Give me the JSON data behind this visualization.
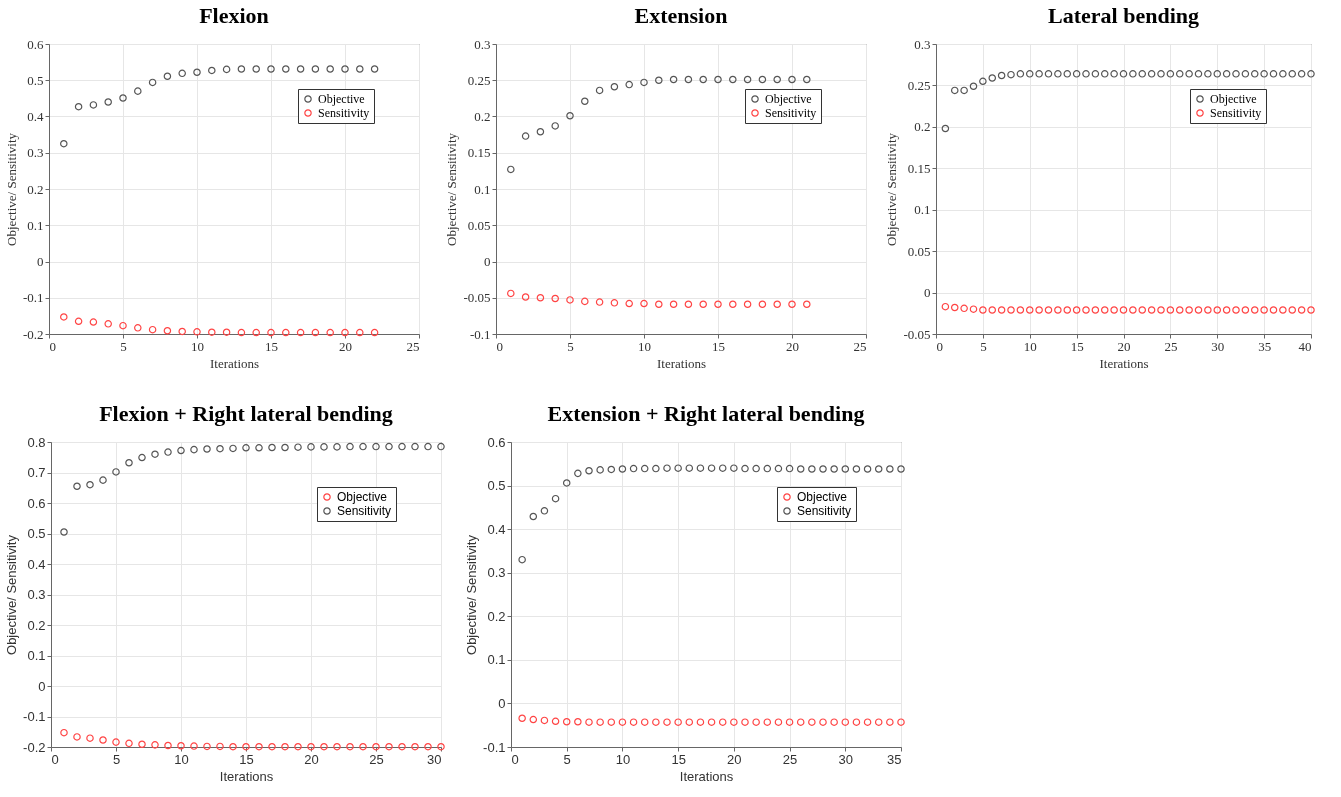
{
  "chart_data": [
    {
      "type": "scatter",
      "title": "Flexion",
      "xlabel": "Iterations",
      "ylabel": "Objective/ Sensitivity",
      "x": [
        1,
        2,
        3,
        4,
        5,
        6,
        7,
        8,
        9,
        10,
        11,
        12,
        13,
        14,
        15,
        16,
        17,
        18,
        19,
        20,
        21,
        22
      ],
      "xlim": [
        0,
        25
      ],
      "xticks": [
        0,
        5,
        10,
        15,
        20,
        25
      ],
      "ylim": [
        -0.2,
        0.6
      ],
      "yticks": [
        -0.2,
        -0.1,
        0,
        0.1,
        0.2,
        0.3,
        0.4,
        0.5,
        0.6
      ],
      "grid": true,
      "legend": "top right",
      "marker": "circle",
      "series": [
        {
          "name": "Objective",
          "color": "#555555",
          "values": [
            0.325,
            0.427,
            0.432,
            0.44,
            0.451,
            0.47,
            0.494,
            0.511,
            0.519,
            0.522,
            0.527,
            0.53,
            0.531,
            0.531,
            0.531,
            0.531,
            0.531,
            0.531,
            0.531,
            0.531,
            0.531,
            0.531
          ]
        },
        {
          "name": "Sensitivity",
          "color": "#ff4444",
          "values": [
            -0.153,
            -0.165,
            -0.167,
            -0.172,
            -0.177,
            -0.183,
            -0.188,
            -0.191,
            -0.193,
            -0.194,
            -0.195,
            -0.195,
            -0.196,
            -0.196,
            -0.196,
            -0.196,
            -0.196,
            -0.196,
            -0.196,
            -0.196,
            -0.196,
            -0.196
          ]
        }
      ]
    },
    {
      "type": "scatter",
      "title": "Extension",
      "xlabel": "Iterations",
      "ylabel": "Objective/ Sensitivity",
      "x": [
        1,
        2,
        3,
        4,
        5,
        6,
        7,
        8,
        9,
        10,
        11,
        12,
        13,
        14,
        15,
        16,
        17,
        18,
        19,
        20,
        21
      ],
      "xlim": [
        0,
        25
      ],
      "xticks": [
        0,
        5,
        10,
        15,
        20,
        25
      ],
      "ylim": [
        -0.1,
        0.3
      ],
      "yticks": [
        -0.1,
        -0.05,
        0,
        0.05,
        0.1,
        0.15,
        0.2,
        0.25,
        0.3
      ],
      "grid": true,
      "legend": "top right",
      "marker": "circle",
      "series": [
        {
          "name": "Objective",
          "color": "#555555",
          "values": [
            0.127,
            0.173,
            0.179,
            0.187,
            0.201,
            0.221,
            0.236,
            0.241,
            0.244,
            0.247,
            0.25,
            0.251,
            0.251,
            0.251,
            0.251,
            0.251,
            0.251,
            0.251,
            0.251,
            0.251,
            0.251
          ]
        },
        {
          "name": "Sensitivity",
          "color": "#ff4444",
          "values": [
            -0.044,
            -0.049,
            -0.05,
            -0.051,
            -0.053,
            -0.055,
            -0.056,
            -0.057,
            -0.058,
            -0.058,
            -0.059,
            -0.059,
            -0.059,
            -0.059,
            -0.059,
            -0.059,
            -0.059,
            -0.059,
            -0.059,
            -0.059,
            -0.059
          ]
        }
      ]
    },
    {
      "type": "scatter",
      "title": "Lateral bending",
      "xlabel": "Iterations",
      "ylabel": "Objective/ Sensitivity",
      "x": [
        1,
        2,
        3,
        4,
        5,
        6,
        7,
        8,
        9,
        10,
        11,
        12,
        13,
        14,
        15,
        16,
        17,
        18,
        19,
        20,
        21,
        22,
        23,
        24,
        25,
        26,
        27,
        28,
        29,
        30,
        31,
        32,
        33,
        34,
        35,
        36,
        37,
        38,
        39,
        40
      ],
      "xlim": [
        0,
        40
      ],
      "xticks": [
        0,
        5,
        10,
        15,
        20,
        25,
        30,
        35,
        40
      ],
      "ylim": [
        -0.05,
        0.3
      ],
      "yticks": [
        -0.05,
        0,
        0.05,
        0.1,
        0.15,
        0.2,
        0.25,
        0.3
      ],
      "grid": true,
      "legend": "top right",
      "marker": "circle",
      "series": [
        {
          "name": "Objective",
          "color": "#555555",
          "values": [
            0.198,
            0.244,
            0.244,
            0.249,
            0.255,
            0.259,
            0.262,
            0.263,
            0.264,
            0.264,
            0.264,
            0.264,
            0.264,
            0.264,
            0.264,
            0.264,
            0.264,
            0.264,
            0.264,
            0.264,
            0.264,
            0.264,
            0.264,
            0.264,
            0.264,
            0.264,
            0.264,
            0.264,
            0.264,
            0.264,
            0.264,
            0.264,
            0.264,
            0.264,
            0.264,
            0.264,
            0.264,
            0.264,
            0.264,
            0.264
          ]
        },
        {
          "name": "Sensitivity",
          "color": "#ff4444",
          "values": [
            -0.017,
            -0.018,
            -0.019,
            -0.02,
            -0.021,
            -0.021,
            -0.021,
            -0.021,
            -0.021,
            -0.021,
            -0.021,
            -0.021,
            -0.021,
            -0.021,
            -0.021,
            -0.021,
            -0.021,
            -0.021,
            -0.021,
            -0.021,
            -0.021,
            -0.021,
            -0.021,
            -0.021,
            -0.021,
            -0.021,
            -0.021,
            -0.021,
            -0.021,
            -0.021,
            -0.021,
            -0.021,
            -0.021,
            -0.021,
            -0.021,
            -0.021,
            -0.021,
            -0.021,
            -0.021,
            -0.021
          ]
        }
      ]
    },
    {
      "type": "scatter",
      "title": "Flexion + Right lateral bending",
      "xlabel": "Iterations",
      "ylabel": "Objective/ Sensitivity",
      "x": [
        1,
        2,
        3,
        4,
        5,
        6,
        7,
        8,
        9,
        10,
        11,
        12,
        13,
        14,
        15,
        16,
        17,
        18,
        19,
        20,
        21,
        22,
        23,
        24,
        25,
        26,
        27,
        28,
        29,
        30
      ],
      "xlim": [
        0,
        30
      ],
      "xticks": [
        0,
        5,
        10,
        15,
        20,
        25,
        30
      ],
      "ylim": [
        -0.2,
        0.8
      ],
      "yticks": [
        -0.2,
        -0.1,
        0,
        0.1,
        0.2,
        0.3,
        0.4,
        0.5,
        0.6,
        0.7,
        0.8
      ],
      "grid": true,
      "legend": "top right",
      "marker": "circle",
      "series": [
        {
          "name": "Objective",
          "color": "#ff4444",
          "values": [
            -0.153,
            -0.167,
            -0.171,
            -0.177,
            -0.184,
            -0.188,
            -0.191,
            -0.193,
            -0.195,
            -0.196,
            -0.197,
            -0.198,
            -0.198,
            -0.199,
            -0.199,
            -0.199,
            -0.199,
            -0.199,
            -0.199,
            -0.199,
            -0.199,
            -0.199,
            -0.199,
            -0.199,
            -0.199,
            -0.199,
            -0.199,
            -0.199,
            -0.199,
            -0.199
          ]
        },
        {
          "name": "Sensitivity",
          "color": "#555555",
          "values": [
            0.505,
            0.655,
            0.66,
            0.675,
            0.702,
            0.732,
            0.749,
            0.76,
            0.767,
            0.772,
            0.775,
            0.777,
            0.778,
            0.779,
            0.781,
            0.781,
            0.782,
            0.782,
            0.783,
            0.784,
            0.784,
            0.784,
            0.785,
            0.785,
            0.785,
            0.785,
            0.785,
            0.785,
            0.785,
            0.785
          ]
        }
      ]
    },
    {
      "type": "scatter",
      "title": "Extension + Right lateral bending",
      "xlabel": "Iterations",
      "ylabel": "Objective/ Sensitivity",
      "x": [
        1,
        2,
        3,
        4,
        5,
        6,
        7,
        8,
        9,
        10,
        11,
        12,
        13,
        14,
        15,
        16,
        17,
        18,
        19,
        20,
        21,
        22,
        23,
        24,
        25,
        26,
        27,
        28,
        29,
        30,
        31,
        32,
        33,
        34,
        35
      ],
      "xlim": [
        0,
        35
      ],
      "xticks": [
        0,
        5,
        10,
        15,
        20,
        25,
        30,
        35
      ],
      "ylim": [
        -0.1,
        0.6
      ],
      "yticks": [
        -0.1,
        0,
        0.1,
        0.2,
        0.3,
        0.4,
        0.5,
        0.6
      ],
      "grid": true,
      "legend": "top right",
      "marker": "circle",
      "series": [
        {
          "name": "Objective",
          "color": "#ff4444",
          "values": [
            -0.034,
            -0.037,
            -0.039,
            -0.041,
            -0.042,
            -0.042,
            -0.043,
            -0.043,
            -0.043,
            -0.043,
            -0.043,
            -0.043,
            -0.043,
            -0.043,
            -0.043,
            -0.043,
            -0.043,
            -0.043,
            -0.043,
            -0.043,
            -0.043,
            -0.043,
            -0.043,
            -0.043,
            -0.043,
            -0.043,
            -0.043,
            -0.043,
            -0.043,
            -0.043,
            -0.043,
            -0.043,
            -0.043,
            -0.043,
            -0.043
          ]
        },
        {
          "name": "Sensitivity",
          "color": "#555555",
          "values": [
            0.33,
            0.429,
            0.442,
            0.47,
            0.506,
            0.528,
            0.534,
            0.536,
            0.537,
            0.538,
            0.539,
            0.539,
            0.539,
            0.54,
            0.54,
            0.54,
            0.54,
            0.54,
            0.54,
            0.54,
            0.539,
            0.539,
            0.539,
            0.539,
            0.539,
            0.538,
            0.538,
            0.538,
            0.538,
            0.538,
            0.538,
            0.538,
            0.538,
            0.538,
            0.538
          ]
        }
      ]
    }
  ]
}
